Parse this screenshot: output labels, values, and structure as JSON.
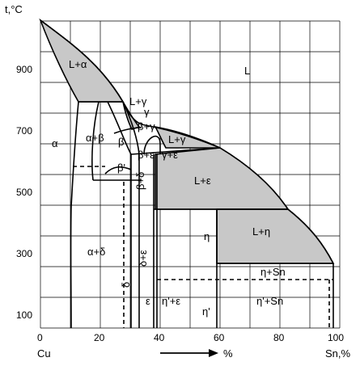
{
  "axes": {
    "y_title": "t,°C",
    "x_unit_label": "%",
    "x_start_element": "Cu",
    "x_end_element": "Sn,%",
    "x_ticks": [
      "0",
      "20",
      "40",
      "60",
      "80",
      "100"
    ],
    "y_ticks": [
      "100",
      "300",
      "500",
      "700",
      "900"
    ]
  },
  "phases": {
    "L": "L",
    "L_alpha": "L+α",
    "L_gamma_top": "L+γ",
    "gamma": "γ",
    "beta_gamma": "β+γ",
    "L_gamma": "L+γ",
    "alpha": "α",
    "alpha_beta": "α+β",
    "beta": "β",
    "beta_eps": "β+ε",
    "gamma_eps": "γ+ε",
    "beta_prime": "β'",
    "beta_delta": "β+δ",
    "L_eps": "L+ε",
    "L_eta": "L+η",
    "eta": "η",
    "eta_sn": "η+Sn",
    "alpha_delta": "α+δ",
    "delta_eps": "δ+ε",
    "delta": "δ",
    "eps": "ε",
    "etap_eps": "η'+ε",
    "etap": "η'",
    "etap_sn": "η'+Sn"
  },
  "colors": {
    "two_phase_fill": "#c8c8c8",
    "lines": "#000000"
  }
}
